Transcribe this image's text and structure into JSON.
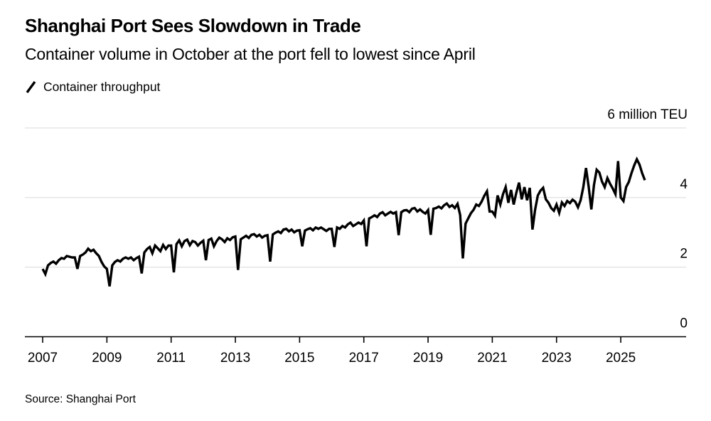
{
  "header": {
    "title": "Shanghai Port Sees Slowdown in Trade",
    "subtitle": "Container volume in October at the port fell to lowest since April"
  },
  "legend": {
    "label": "Container throughput",
    "marker": "slash-icon",
    "series_color": "#000000"
  },
  "footer": {
    "source": "Source: Shanghai Port"
  },
  "chart_data": {
    "type": "line",
    "title": "Shanghai Port Sees Slowdown in Trade",
    "subtitle": "Container volume in October at the port fell to lowest since April",
    "unit": "million TEU",
    "x_frequency": "monthly",
    "x_start": "2007-01",
    "x_end": "2025-10",
    "x_tick_years": [
      2007,
      2009,
      2011,
      2013,
      2015,
      2017,
      2019,
      2021,
      2023,
      2025
    ],
    "x_tick_labels": [
      "2007",
      "2009",
      "2011",
      "2013",
      "2015",
      "2017",
      "2019",
      "2021",
      "2023",
      "2025"
    ],
    "y_ticks": [
      0,
      2,
      4,
      6
    ],
    "y_tick_labels": [
      "0",
      "2",
      "4",
      "6 million TEU"
    ],
    "ylim": [
      0,
      6
    ],
    "grid": "horizontal",
    "legend_position": "top-left",
    "line_color": "#000000",
    "grid_color": "#dedede",
    "axis_color": "#000000",
    "background": "#ffffff",
    "series": [
      {
        "name": "Container throughput",
        "values": [
          1.95,
          1.8,
          2.05,
          2.12,
          2.16,
          2.1,
          2.2,
          2.26,
          2.24,
          2.32,
          2.3,
          2.28,
          2.28,
          1.95,
          2.32,
          2.36,
          2.42,
          2.53,
          2.46,
          2.5,
          2.4,
          2.32,
          2.15,
          2.02,
          1.95,
          1.45,
          2.05,
          2.15,
          2.2,
          2.16,
          2.24,
          2.28,
          2.24,
          2.28,
          2.2,
          2.26,
          2.3,
          1.82,
          2.42,
          2.52,
          2.58,
          2.4,
          2.62,
          2.54,
          2.46,
          2.64,
          2.52,
          2.62,
          2.62,
          1.85,
          2.66,
          2.77,
          2.6,
          2.75,
          2.79,
          2.63,
          2.75,
          2.72,
          2.62,
          2.7,
          2.76,
          2.2,
          2.78,
          2.82,
          2.6,
          2.75,
          2.85,
          2.8,
          2.72,
          2.83,
          2.78,
          2.86,
          2.88,
          1.92,
          2.8,
          2.85,
          2.9,
          2.84,
          2.93,
          2.95,
          2.88,
          2.93,
          2.85,
          2.9,
          2.92,
          2.16,
          2.94,
          2.99,
          3.03,
          2.98,
          3.08,
          3.1,
          3.03,
          3.08,
          3.0,
          3.05,
          3.06,
          2.6,
          3.05,
          3.09,
          3.12,
          3.06,
          3.14,
          3.1,
          3.14,
          3.09,
          3.04,
          3.1,
          3.1,
          2.58,
          3.14,
          3.1,
          3.18,
          3.14,
          3.23,
          3.28,
          3.18,
          3.23,
          3.28,
          3.24,
          3.34,
          2.6,
          3.4,
          3.44,
          3.49,
          3.44,
          3.54,
          3.58,
          3.49,
          3.54,
          3.59,
          3.54,
          3.58,
          2.92,
          3.58,
          3.63,
          3.64,
          3.58,
          3.68,
          3.7,
          3.6,
          3.66,
          3.59,
          3.54,
          3.64,
          2.93,
          3.68,
          3.7,
          3.74,
          3.69,
          3.78,
          3.83,
          3.73,
          3.78,
          3.7,
          3.82,
          3.5,
          2.25,
          3.25,
          3.4,
          3.55,
          3.65,
          3.8,
          3.76,
          3.88,
          4.05,
          4.18,
          3.6,
          3.6,
          3.48,
          4.06,
          3.8,
          4.1,
          4.3,
          3.85,
          4.22,
          3.8,
          4.15,
          4.43,
          3.95,
          4.3,
          3.92,
          4.28,
          3.08,
          3.65,
          4.06,
          4.2,
          4.28,
          3.95,
          3.85,
          3.7,
          3.62,
          3.8,
          3.56,
          3.86,
          3.76,
          3.9,
          3.84,
          3.94,
          3.88,
          3.72,
          3.92,
          4.3,
          4.85,
          4.32,
          3.66,
          4.36,
          4.8,
          4.72,
          4.46,
          4.3,
          4.56,
          4.4,
          4.26,
          4.1,
          5.05,
          4.0,
          3.9,
          4.3,
          4.45,
          4.7,
          4.92,
          5.1,
          4.95,
          4.7,
          4.5
        ]
      }
    ]
  }
}
